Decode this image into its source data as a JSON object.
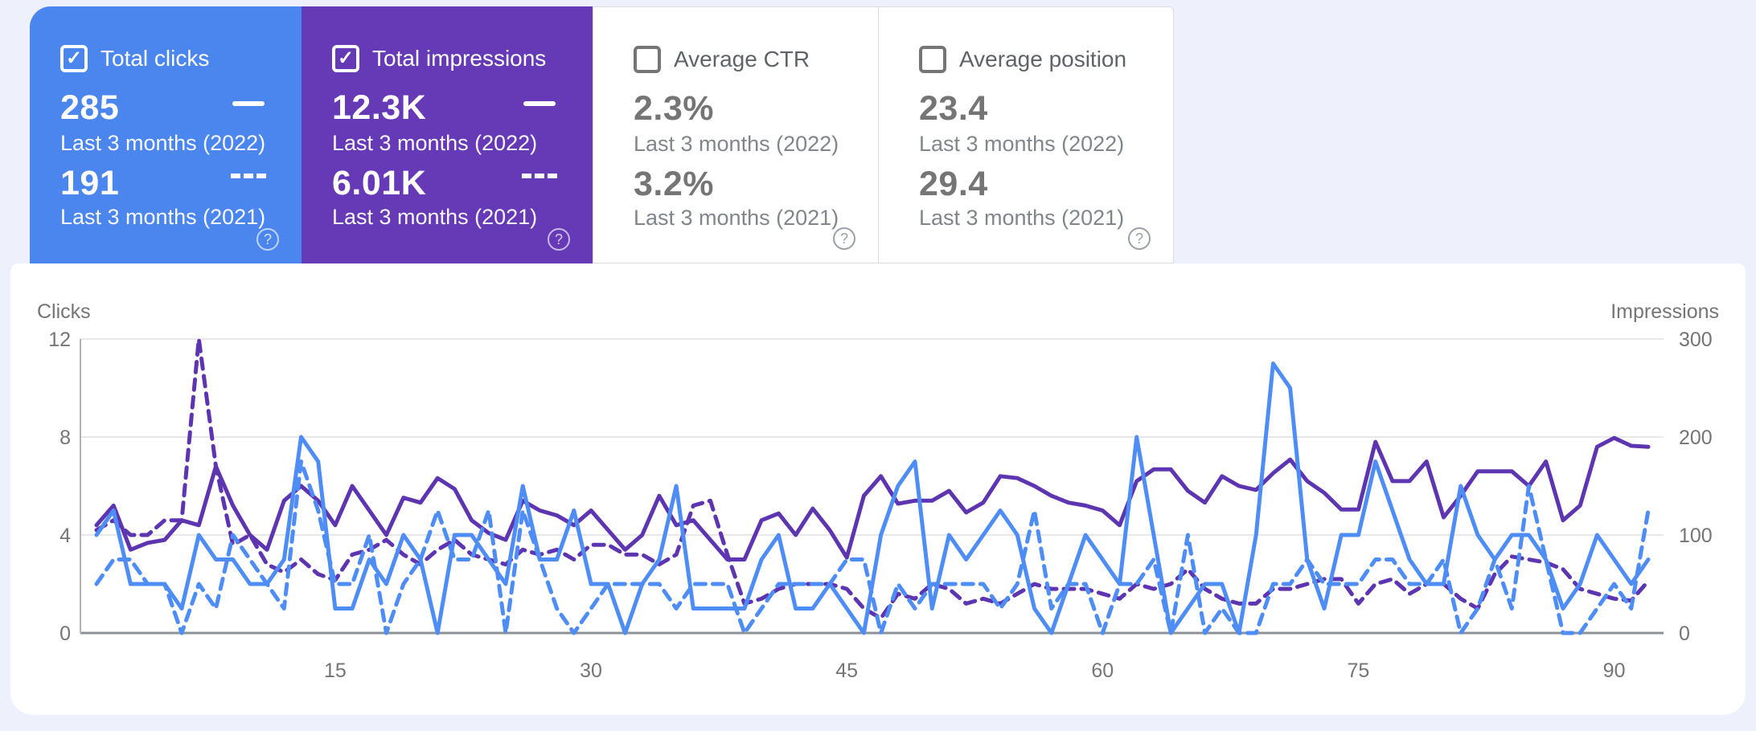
{
  "icons": {
    "checkmark": "✓",
    "help": "?"
  },
  "colors": {
    "page_background": "#eef1fb",
    "card_blue": "#4a86ee",
    "card_purple": "#6639b7",
    "line_clicks": "#4d8df5",
    "line_impressions": "#5e35b1",
    "gridline": "#e8e8e8",
    "axis_line": "#8d9196",
    "tick_text": "#757575",
    "card_border": "#dadce0"
  },
  "cards": [
    {
      "label": "Total clicks",
      "checked": true,
      "theme": "blue",
      "value_current": "285",
      "period_current": "Last 3 months (2022)",
      "value_previous": "191",
      "period_previous": "Last 3 months (2021)"
    },
    {
      "label": "Total impressions",
      "checked": true,
      "theme": "purple",
      "value_current": "12.3K",
      "period_current": "Last 3 months (2022)",
      "value_previous": "6.01K",
      "period_previous": "Last 3 months (2021)"
    },
    {
      "label": "Average CTR",
      "checked": false,
      "theme": "white",
      "value_current": "2.3%",
      "period_current": "Last 3 months (2022)",
      "value_previous": "3.2%",
      "period_previous": "Last 3 months (2021)"
    },
    {
      "label": "Average position",
      "checked": false,
      "theme": "white",
      "value_current": "23.4",
      "period_current": "Last 3 months (2022)",
      "value_previous": "29.4",
      "period_previous": "Last 3 months (2021)"
    }
  ],
  "chart_data": {
    "type": "line",
    "title": "",
    "x_unit": "day",
    "days": 92,
    "x_tick_labels": [
      15,
      30,
      45,
      60,
      75,
      90
    ],
    "left_axis": {
      "title": "Clicks",
      "ticks": [
        0,
        4,
        8,
        12
      ],
      "range": [
        0,
        12
      ]
    },
    "right_axis": {
      "title": "Impressions",
      "ticks": [
        0,
        100,
        200,
        300
      ],
      "range": [
        0,
        300
      ]
    },
    "grid": true,
    "legend_position": "none",
    "series": [
      {
        "name": "Clicks — Last 3 months (2022)",
        "axis": "left",
        "style": "solid",
        "color": "#4d8df5",
        "values": [
          4,
          5,
          2,
          2,
          2,
          1,
          4,
          3,
          3,
          2,
          2,
          3,
          8,
          7,
          1,
          1,
          3,
          2,
          4,
          3,
          0,
          4,
          4,
          3,
          2,
          6,
          3,
          3,
          5,
          2,
          2,
          0,
          2,
          3,
          6,
          1,
          1,
          1,
          1,
          3,
          4,
          1,
          1,
          2,
          1,
          0,
          4,
          6,
          7,
          1,
          4,
          3,
          4,
          5,
          4,
          1,
          0,
          2,
          4,
          3,
          2,
          8,
          4,
          0,
          1,
          2,
          2,
          0,
          4,
          11,
          10,
          3,
          1,
          4,
          4,
          7,
          5,
          3,
          2,
          2,
          6,
          4,
          3,
          4,
          4,
          3,
          1,
          2,
          4,
          3,
          2,
          3
        ]
      },
      {
        "name": "Clicks — Last 3 months (2021)",
        "axis": "left",
        "style": "dashed",
        "color": "#4d8df5",
        "values": [
          2,
          3,
          3,
          2,
          2,
          0,
          2,
          1,
          4,
          3,
          2,
          1,
          7,
          5,
          2,
          2,
          4,
          0,
          2,
          3,
          5,
          3,
          3,
          5,
          0,
          5,
          3,
          1,
          0,
          1,
          2,
          2,
          2,
          2,
          1,
          2,
          2,
          2,
          0,
          1,
          2,
          2,
          2,
          2,
          3,
          3,
          0,
          2,
          1,
          2,
          2,
          2,
          2,
          1,
          2,
          5,
          1,
          2,
          2,
          0,
          2,
          2,
          3,
          0,
          4,
          0,
          1,
          0,
          0,
          2,
          2,
          3,
          2,
          2,
          2,
          3,
          3,
          2,
          2,
          3,
          0,
          1,
          3,
          1,
          6,
          3,
          0,
          0,
          1,
          2,
          1,
          5
        ]
      },
      {
        "name": "Impressions — Last 3 months (2022)",
        "axis": "right",
        "style": "solid",
        "color": "#5e35b1",
        "values": [
          110,
          130,
          85,
          92,
          95,
          115,
          110,
          170,
          130,
          100,
          85,
          135,
          150,
          135,
          110,
          150,
          125,
          100,
          138,
          133,
          158,
          147,
          115,
          102,
          95,
          135,
          125,
          120,
          110,
          125,
          105,
          85,
          100,
          140,
          110,
          115,
          95,
          75,
          75,
          115,
          122,
          100,
          127,
          105,
          77,
          140,
          160,
          132,
          135,
          135,
          145,
          123,
          133,
          160,
          158,
          150,
          140,
          133,
          130,
          125,
          110,
          155,
          167,
          167,
          145,
          133,
          160,
          150,
          146,
          163,
          177,
          155,
          143,
          126,
          126,
          195,
          155,
          155,
          175,
          118,
          140,
          165,
          165,
          165,
          150,
          175,
          115,
          130,
          190,
          199,
          191,
          190
        ]
      },
      {
        "name": "Impressions — Last 3 months (2021)",
        "axis": "right",
        "style": "dashed",
        "color": "#5e35b1",
        "values": [
          105,
          115,
          100,
          100,
          115,
          115,
          300,
          170,
          90,
          100,
          70,
          62,
          75,
          60,
          54,
          80,
          85,
          95,
          80,
          70,
          85,
          95,
          80,
          75,
          70,
          85,
          80,
          85,
          75,
          90,
          90,
          80,
          80,
          70,
          80,
          130,
          135,
          80,
          30,
          35,
          45,
          50,
          50,
          50,
          45,
          25,
          15,
          40,
          35,
          50,
          45,
          30,
          35,
          30,
          40,
          50,
          45,
          45,
          45,
          40,
          35,
          50,
          45,
          50,
          65,
          45,
          35,
          30,
          30,
          45,
          45,
          50,
          55,
          55,
          30,
          50,
          55,
          40,
          50,
          50,
          35,
          25,
          60,
          78,
          75,
          72,
          65,
          45,
          40,
          35,
          33,
          53
        ]
      }
    ]
  }
}
